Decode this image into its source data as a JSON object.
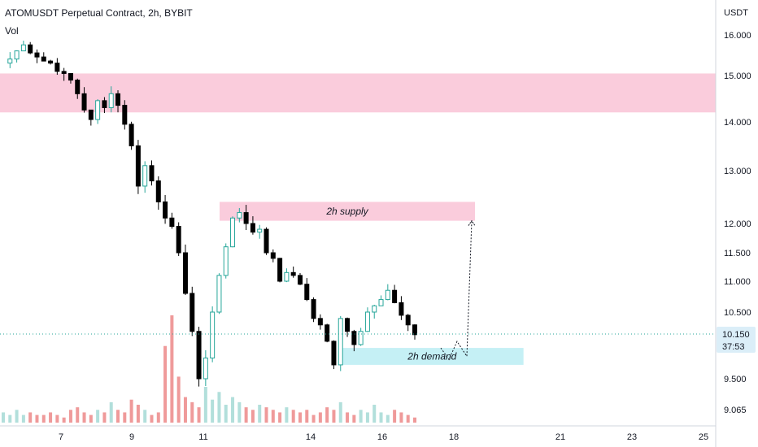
{
  "header": {
    "title": "ATOMUSDT Perpetual Contract, 2h, BYBIT",
    "volume_label": "Vol"
  },
  "price_axis": {
    "currency": "USDT",
    "ticks": [
      "16.000",
      "15.000",
      "14.000",
      "13.000",
      "12.000",
      "11.500",
      "11.000",
      "10.500",
      "9.500",
      "9.065"
    ]
  },
  "last_price": {
    "price": "10.150",
    "countdown": "37:53"
  },
  "colors": {
    "up": "#26a69a",
    "down": "#000000",
    "supply_zone": "#f8bbd0",
    "demand_zone": "#b2ebf2",
    "volume_up": "#b2dfdb",
    "volume_down": "#ef9a9a",
    "price_tag_bg": "#dbeef8"
  },
  "chart_data": {
    "type": "candlestick",
    "symbol": "ATOMUSDT Perpetual Contract",
    "timeframe": "2h",
    "exchange": "BYBIT",
    "y_unit": "USDT",
    "x_tick_labels": [
      "7",
      "9",
      "11",
      "14",
      "16",
      "18",
      "21",
      "23",
      "25"
    ],
    "last_price": 10.15,
    "price_path": [
      15.3,
      15.4,
      15.6,
      15.75,
      15.55,
      15.45,
      15.35,
      15.3,
      15.1,
      15.05,
      14.9,
      14.6,
      14.25,
      14.05,
      14.45,
      14.3,
      14.6,
      14.35,
      13.95,
      13.5,
      12.7,
      13.1,
      12.8,
      12.4,
      12.1,
      11.95,
      11.5,
      10.8,
      10.2,
      9.5,
      9.8,
      10.5,
      11.1,
      11.6,
      12.1,
      12.2,
      12.0,
      11.85,
      11.9,
      11.5,
      11.4,
      11.0,
      11.15,
      11.1,
      10.95,
      10.7,
      10.4,
      10.3,
      10.05,
      9.7,
      10.4,
      10.2,
      10.0,
      10.2,
      10.5,
      10.6,
      10.7,
      10.85,
      10.65,
      10.45,
      10.3,
      10.15
    ],
    "zones": [
      {
        "type": "supply",
        "label": "",
        "low": 14.2,
        "high": 15.05,
        "x_end": "25"
      },
      {
        "type": "supply",
        "label": "2h supply",
        "low": 12.05,
        "high": 12.4,
        "x_start": "11",
        "x_end": "18"
      },
      {
        "type": "demand",
        "label": "2h demand",
        "low": 9.7,
        "high": 9.95,
        "x_start": "13",
        "x_end": "19"
      }
    ],
    "projection": {
      "path": [
        9.95,
        9.85,
        9.95,
        9.85,
        12.05
      ],
      "x_end": "18"
    },
    "volume": {
      "values": [
        4,
        3,
        5,
        3,
        4,
        3,
        3,
        4,
        3,
        2,
        5,
        6,
        4,
        3,
        5,
        4,
        8,
        5,
        4,
        9,
        7,
        5,
        3,
        4,
        30,
        42,
        18,
        10,
        8,
        6,
        14,
        9,
        12,
        7,
        10,
        8,
        6,
        5,
        7,
        6,
        5,
        4,
        6,
        5,
        4,
        5,
        3,
        4,
        6,
        5,
        8,
        4,
        3,
        5,
        4,
        7,
        4,
        3,
        5,
        4,
        3,
        2
      ]
    }
  }
}
